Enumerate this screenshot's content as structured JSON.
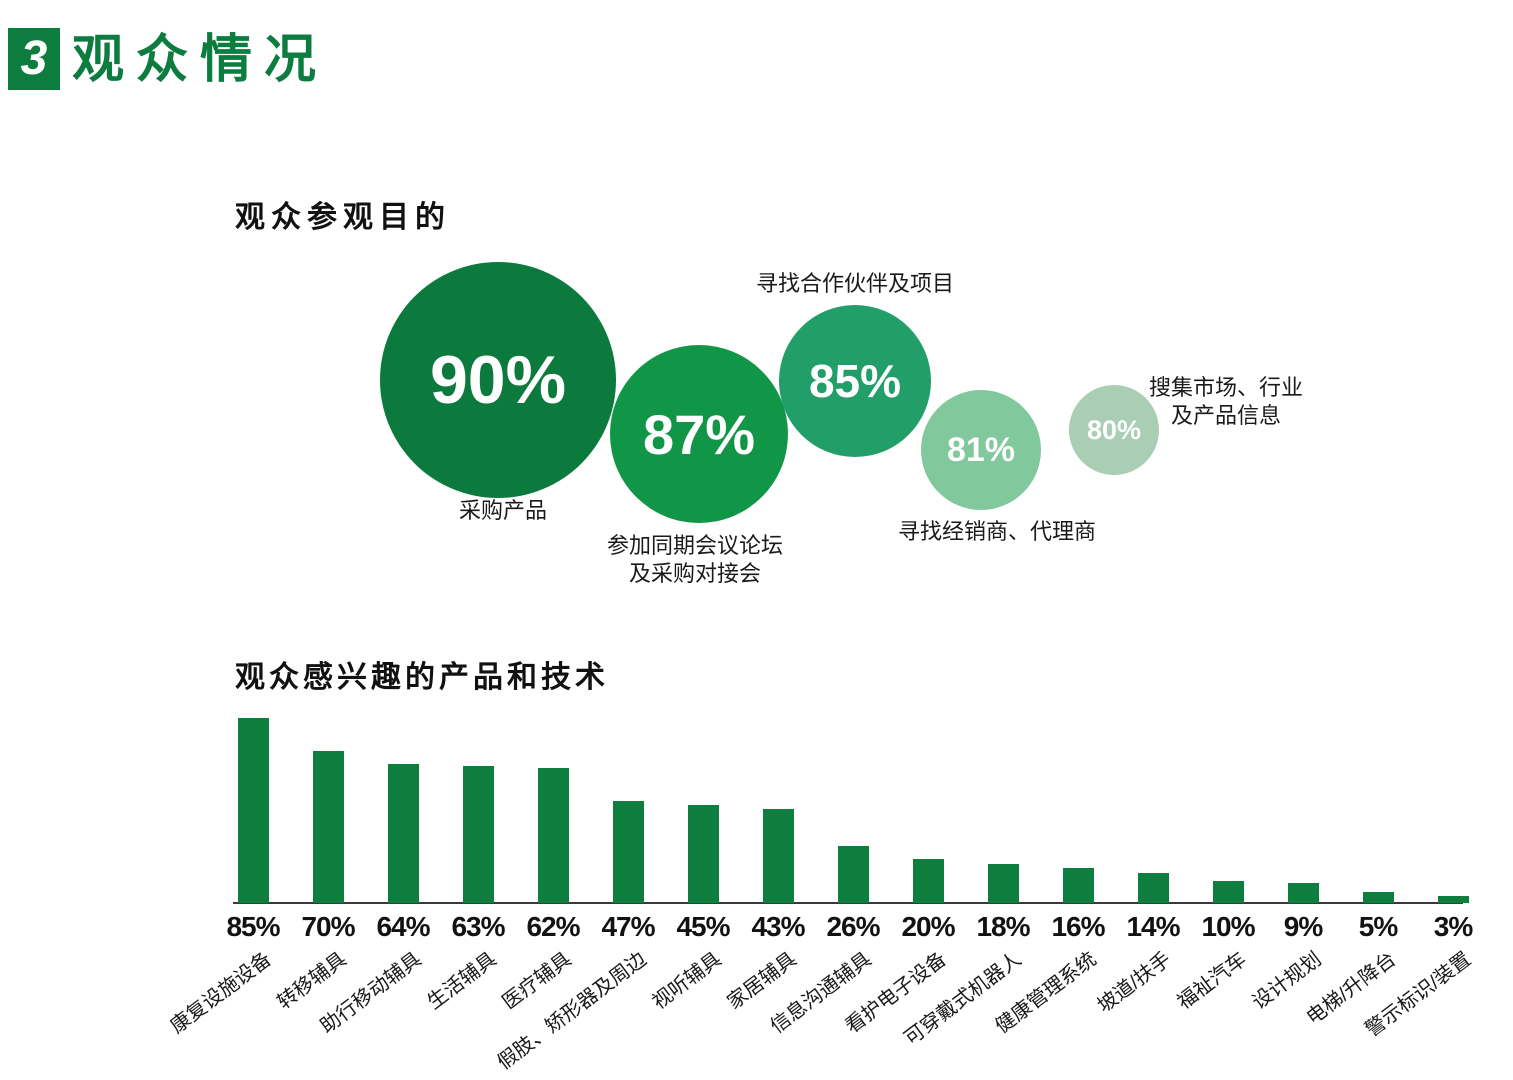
{
  "header": {
    "section_number": "3",
    "title": "观众情况"
  },
  "colors": {
    "brand_green": "#0C7C3F",
    "bar_green": "#0E7E3E",
    "axis_gray": "#3A3A3A",
    "text_dark": "#1A1A1A",
    "bubble_text": "#FFFFFF"
  },
  "chart_data": [
    {
      "type": "bubble",
      "title": "观众参观目的",
      "unit": "%",
      "legend_position": "none",
      "points": [
        {
          "label": "采购产品",
          "value": 90,
          "color": "#0C7A3C",
          "label_position": "below"
        },
        {
          "label": "参加同期会议论坛\n及采购对接会",
          "value": 87,
          "color": "#119648",
          "label_position": "below"
        },
        {
          "label": "寻找合作伙伴及项目",
          "value": 85,
          "color": "#229E68",
          "label_position": "above"
        },
        {
          "label": "寻找经销商、代理商",
          "value": 81,
          "color": "#81C89C",
          "label_position": "below"
        },
        {
          "label": "搜集市场、行业\n及产品信息",
          "value": 80,
          "color": "#A9CEB4",
          "label_position": "right"
        }
      ]
    },
    {
      "type": "bar",
      "title": "观众感兴趣的产品和技术",
      "unit": "%",
      "grid": false,
      "ylim": [
        0,
        100
      ],
      "value_labels_position": "below-axis",
      "category_label_rotation_deg": -37,
      "categories": [
        "康复设施设备",
        "转移辅具",
        "助行移动辅具",
        "生活辅具",
        "医疗辅具",
        "假肢、矫形器及周边",
        "视听辅具",
        "家居辅具",
        "信息沟通辅具",
        "看护电子设备",
        "可穿戴式机器人",
        "健康管理系统",
        "坡道/扶手",
        "福祉汽车",
        "设计规划",
        "电梯/升降台",
        "警示标识/装置"
      ],
      "values": [
        85,
        70,
        64,
        63,
        62,
        47,
        45,
        43,
        26,
        20,
        18,
        16,
        14,
        10,
        9,
        5,
        3
      ]
    }
  ]
}
